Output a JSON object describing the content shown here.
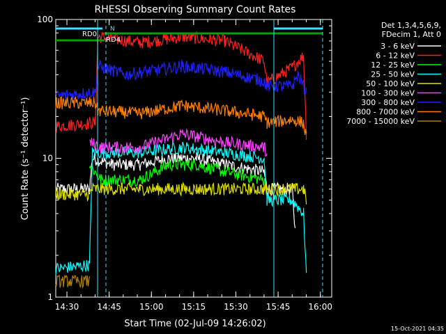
{
  "footer_timestamp": "15-Oct-2021 04:35",
  "chart_data": {
    "type": "line",
    "title": "RHESSI Observing Summary Count Rates",
    "xlabel": "Start Time (02-Jul-09 14:26:02)",
    "ylabel": "Count Rate (s⁻¹ detector⁻¹)",
    "y_scale": "log",
    "ylim": [
      1,
      100
    ],
    "y_ticks": [
      "1",
      "10",
      "100"
    ],
    "xlim_minutes_after_1426": [
      0,
      98
    ],
    "x_ticks": [
      "14:30",
      "14:45",
      "15:00",
      "15:15",
      "15:30",
      "15:45",
      "16:00"
    ],
    "legend_header": [
      "Det 1,3,4,5,6,9,",
      "FDecim 1, Att 0"
    ],
    "legend_position": "right",
    "annotations": {
      "rd0_label": "RD0",
      "rd4_label": "RD4",
      "n_label": "N"
    },
    "series": [
      {
        "name": "3 - 6 keV",
        "color": "#ffffff",
        "points": [
          [
            0,
            6
          ],
          [
            12,
            6
          ],
          [
            13,
            10
          ],
          [
            20,
            9
          ],
          [
            30,
            9
          ],
          [
            40,
            10
          ],
          [
            50,
            10
          ],
          [
            60,
            9
          ],
          [
            74,
            8
          ],
          [
            75,
            6
          ],
          [
            84,
            6
          ],
          [
            85,
            3
          ]
        ]
      },
      {
        "name": "6 - 12 keV",
        "color": "#ff2020",
        "points": [
          [
            0,
            17
          ],
          [
            14,
            18
          ],
          [
            15,
            75
          ],
          [
            30,
            68
          ],
          [
            45,
            75
          ],
          [
            60,
            70
          ],
          [
            74,
            50
          ],
          [
            75,
            35
          ],
          [
            84,
            45
          ],
          [
            88,
            55
          ],
          [
            89,
            15
          ]
        ]
      },
      {
        "name": "12 - 25 keV",
        "color": "#00ff00",
        "points": [
          [
            12,
            9
          ],
          [
            16,
            7
          ],
          [
            30,
            7
          ],
          [
            40,
            9
          ],
          [
            50,
            9
          ],
          [
            60,
            8
          ],
          [
            74,
            7
          ],
          [
            75,
            6
          ]
        ]
      },
      {
        "name": "25 - 50 keV",
        "color": "#00ffff",
        "points": [
          [
            0,
            1.6
          ],
          [
            12,
            1.7
          ],
          [
            13,
            11
          ],
          [
            30,
            11
          ],
          [
            45,
            12
          ],
          [
            60,
            11
          ],
          [
            74,
            10
          ],
          [
            75,
            5
          ],
          [
            84,
            5
          ],
          [
            88,
            4
          ],
          [
            89,
            1.5
          ]
        ]
      },
      {
        "name": "50 - 100 keV",
        "color": "#e0e000",
        "points": [
          [
            0,
            5.5
          ],
          [
            12,
            5.5
          ],
          [
            13,
            6
          ],
          [
            30,
            6
          ],
          [
            50,
            6
          ],
          [
            74,
            6
          ],
          [
            75,
            6
          ],
          [
            84,
            6
          ],
          [
            88,
            6
          ],
          [
            89,
            5
          ]
        ]
      },
      {
        "name": "100 - 300 keV",
        "color": "#ff40ff",
        "points": [
          [
            12,
            13
          ],
          [
            16,
            12
          ],
          [
            30,
            12
          ],
          [
            45,
            15
          ],
          [
            60,
            13
          ],
          [
            74,
            12
          ],
          [
            75,
            11
          ]
        ]
      },
      {
        "name": "300 - 800 keV",
        "color": "#2020ff",
        "points": [
          [
            0,
            28
          ],
          [
            14,
            30
          ],
          [
            15,
            46
          ],
          [
            25,
            40
          ],
          [
            45,
            46
          ],
          [
            60,
            42
          ],
          [
            74,
            36
          ],
          [
            75,
            33
          ],
          [
            84,
            33
          ],
          [
            86,
            40
          ],
          [
            89,
            30
          ]
        ]
      },
      {
        "name": "800 - 7000 keV",
        "color": "#ff8000",
        "points": [
          [
            0,
            25
          ],
          [
            14,
            25
          ],
          [
            15,
            22
          ],
          [
            30,
            21
          ],
          [
            45,
            24
          ],
          [
            60,
            22
          ],
          [
            74,
            20
          ],
          [
            75,
            18
          ],
          [
            84,
            19
          ],
          [
            88,
            18
          ],
          [
            89,
            14
          ]
        ]
      },
      {
        "name": "7000 - 15000 keV",
        "color": "#b08000",
        "points": [
          [
            0,
            1.3
          ],
          [
            12,
            1.3
          ]
        ]
      }
    ]
  }
}
